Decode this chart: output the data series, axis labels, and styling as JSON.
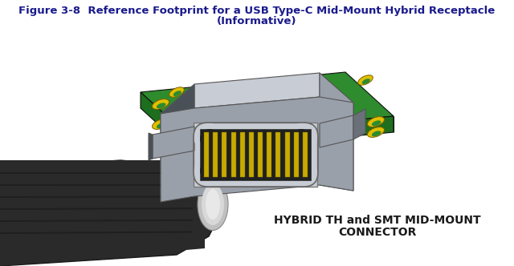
{
  "title_line1": "Figure 3-8  Reference Footprint for a USB Type-C Mid-Mount Hybrid Receptacle",
  "title_line2": "(Informative)",
  "label_line1": "HYBRID TH and SMT MID-MOUNT",
  "label_line2": "CONNECTOR",
  "bg_color": "#ffffff",
  "title_color": "#1a1a8c",
  "label_color": "#1a1a1a",
  "title_fontsize": 9.5,
  "label_fontsize": 10.0,
  "pcb_green": "#2e8b2e",
  "pcb_green_dark": "#1a6b1a",
  "pcb_green_side": "#1d6e1d",
  "con_light": "#c8ccd4",
  "con_mid": "#9aa0aa",
  "con_dark": "#6a707a",
  "con_darker": "#4a5058",
  "con_inner": "#585e68",
  "pad_yellow": "#e0c000",
  "pin_yellow": "#c8aa00",
  "pin_dark": "#7a6800",
  "plug_body": "#2a2a2a",
  "plug_grad1": "#1a1a1a",
  "plug_grad2": "#555555",
  "plug_light": "#aaaaaa",
  "plug_metal": "#c0c0c0",
  "white": "#ffffff"
}
